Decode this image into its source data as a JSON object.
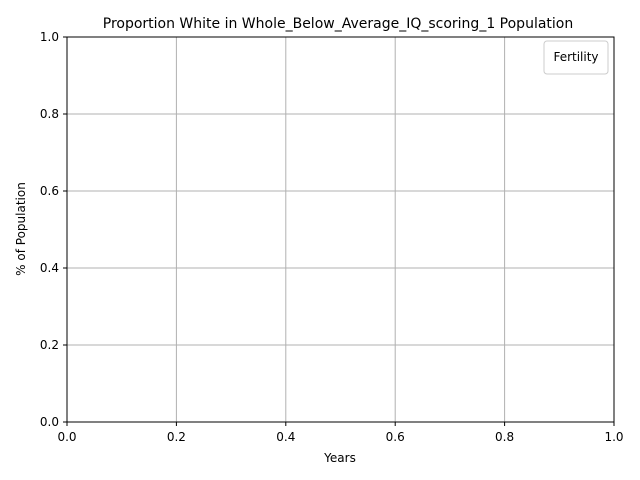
{
  "chart_data": {
    "type": "line",
    "title": "Proportion White in Whole_Below_Average_IQ_scoring_1 Population",
    "xlabel": "Years",
    "ylabel": "% of Population",
    "xlim": [
      0,
      1
    ],
    "ylim": [
      0,
      1
    ],
    "x_ticks": [
      "0.0",
      "0.2",
      "0.4",
      "0.6",
      "0.8",
      "1.0"
    ],
    "y_ticks": [
      "0.0",
      "0.2",
      "0.4",
      "0.6",
      "0.8",
      "1.0"
    ],
    "grid": true,
    "legend": {
      "title": "Fertility",
      "location": "upper right",
      "entries": []
    },
    "series": []
  },
  "colors": {
    "axes": "#000000",
    "grid": "#b0b0b0",
    "background": "#ffffff",
    "legend_border": "#cccccc"
  }
}
